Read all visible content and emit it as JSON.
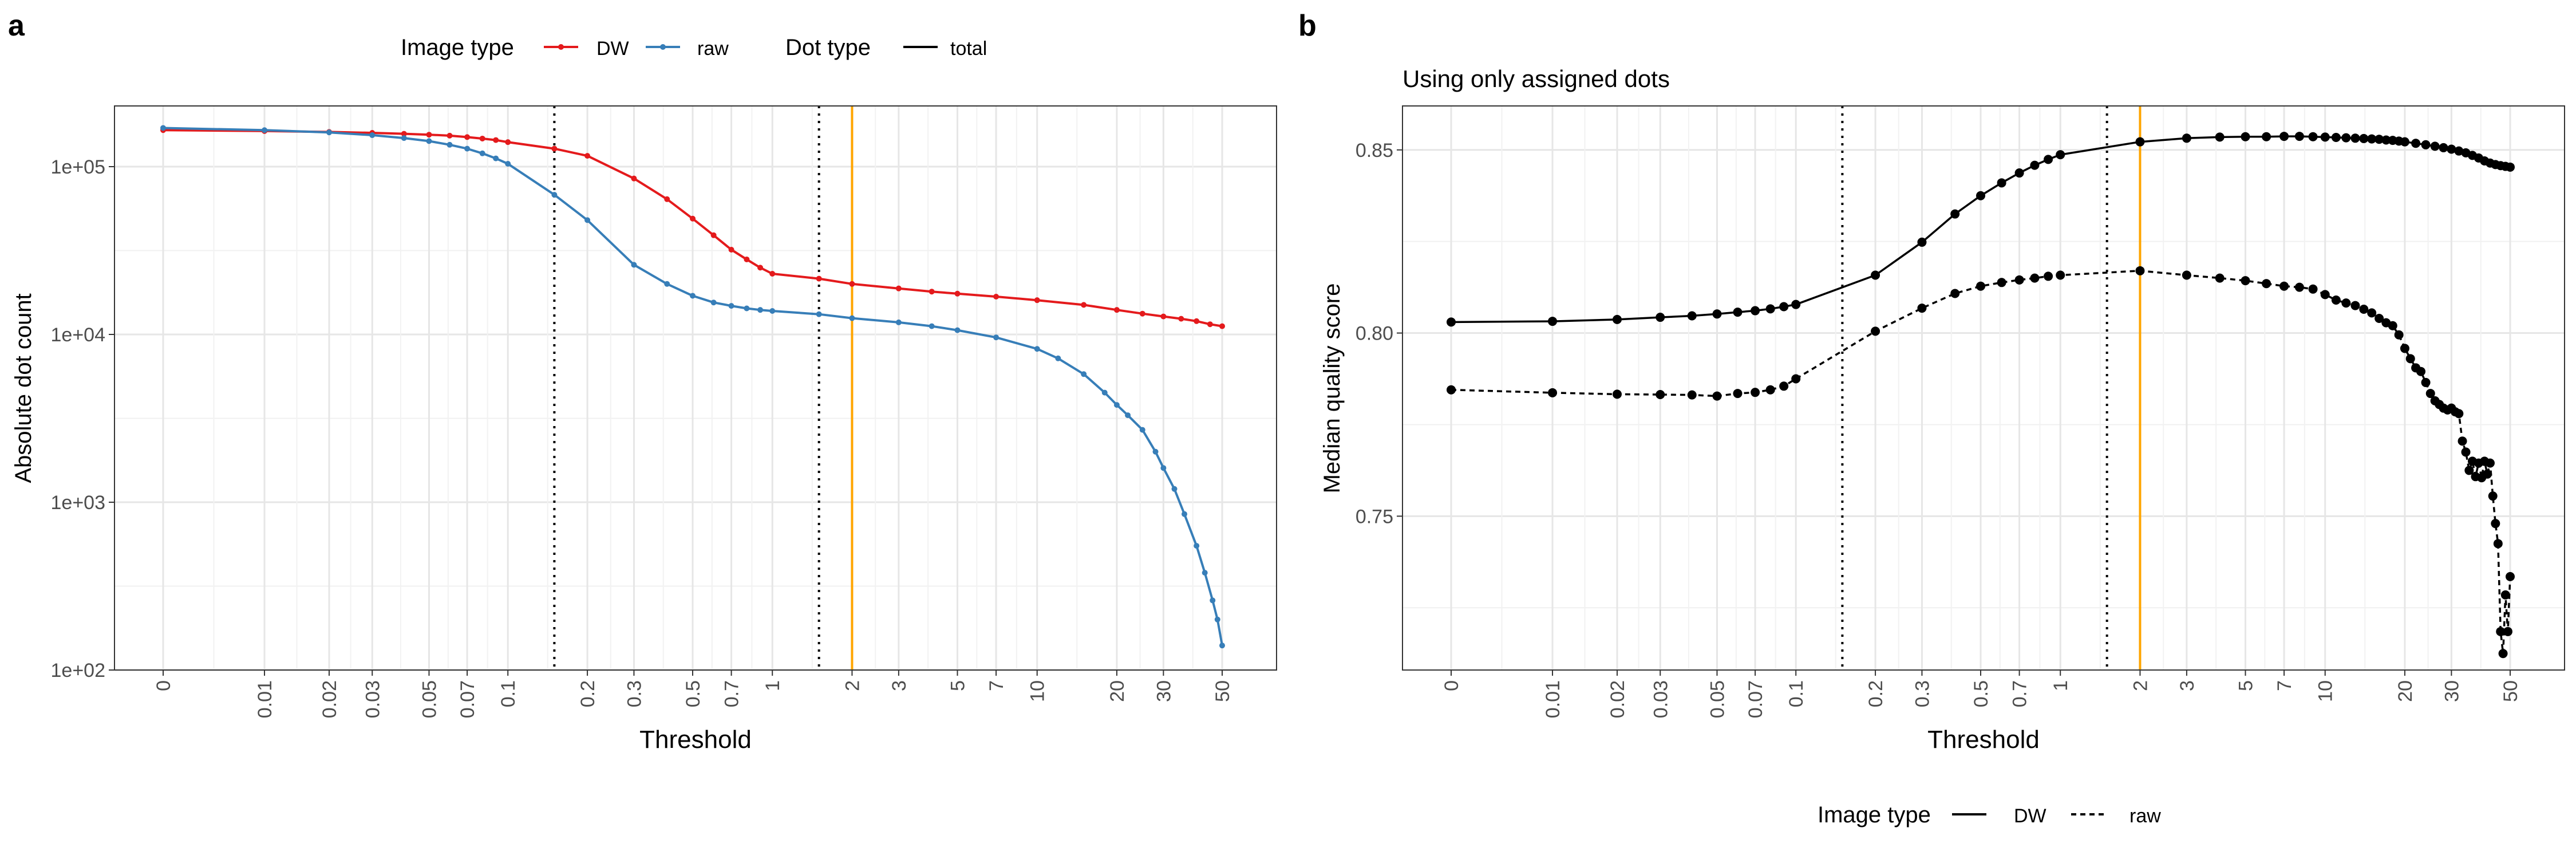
{
  "panels": [
    {
      "tag": "a",
      "title": "",
      "type": "line",
      "xlabel": "Threshold",
      "ylabel": "Absolute dot count",
      "x_ticks": [
        "0",
        "0.01",
        "0.02",
        "0.03",
        "0.05",
        "0.07",
        "0.1",
        "0.2",
        "0.3",
        "0.5",
        "0.7",
        "1",
        "2",
        "3",
        "5",
        "7",
        "10",
        "20",
        "30",
        "50"
      ],
      "y_scale": "log10",
      "y_ticks": [
        "1e+02",
        "1e+03",
        "1e+04",
        "1e+05"
      ],
      "vlines": [
        {
          "x": 0.15,
          "style": "dotted",
          "color": "#000000"
        },
        {
          "x": 1.5,
          "style": "dotted",
          "color": "#000000"
        },
        {
          "x": 2,
          "style": "solid",
          "color": "#FFA500"
        }
      ],
      "chart_data": {
        "type": "line",
        "series": [
          {
            "name": "DW",
            "color": "#E41A1C",
            "points": [
              [
                0,
                165000
              ],
              [
                0.01,
                163000
              ],
              [
                0.02,
                161000
              ],
              [
                0.03,
                159000
              ],
              [
                0.04,
                157000
              ],
              [
                0.05,
                155000
              ],
              [
                0.06,
                153000
              ],
              [
                0.07,
                150000
              ],
              [
                0.08,
                147000
              ],
              [
                0.09,
                144000
              ],
              [
                0.1,
                140000
              ],
              [
                0.15,
                128000
              ],
              [
                0.2,
                116000
              ],
              [
                0.3,
                85000
              ],
              [
                0.4,
                64000
              ],
              [
                0.5,
                49000
              ],
              [
                0.6,
                39000
              ],
              [
                0.7,
                32000
              ],
              [
                0.8,
                28000
              ],
              [
                0.9,
                25000
              ],
              [
                1,
                23000
              ],
              [
                1.5,
                21500
              ],
              [
                2,
                20000
              ],
              [
                3,
                18800
              ],
              [
                4,
                18000
              ],
              [
                5,
                17500
              ],
              [
                7,
                16800
              ],
              [
                10,
                16000
              ],
              [
                15,
                15000
              ],
              [
                20,
                14000
              ],
              [
                25,
                13300
              ],
              [
                30,
                12800
              ],
              [
                35,
                12400
              ],
              [
                40,
                12000
              ],
              [
                45,
                11500
              ],
              [
                50,
                11200
              ]
            ]
          },
          {
            "name": "raw",
            "color": "#377EB8",
            "points": [
              [
                0,
                170000
              ],
              [
                0.01,
                165000
              ],
              [
                0.02,
                160000
              ],
              [
                0.03,
                154000
              ],
              [
                0.04,
                148000
              ],
              [
                0.05,
                142000
              ],
              [
                0.06,
                135000
              ],
              [
                0.07,
                128000
              ],
              [
                0.08,
                120000
              ],
              [
                0.09,
                112000
              ],
              [
                0.1,
                104000
              ],
              [
                0.15,
                68000
              ],
              [
                0.2,
                48000
              ],
              [
                0.3,
                26000
              ],
              [
                0.4,
                20000
              ],
              [
                0.5,
                17000
              ],
              [
                0.6,
                15500
              ],
              [
                0.7,
                14800
              ],
              [
                0.8,
                14300
              ],
              [
                0.9,
                14000
              ],
              [
                1,
                13800
              ],
              [
                1.5,
                13200
              ],
              [
                2,
                12500
              ],
              [
                3,
                11800
              ],
              [
                4,
                11200
              ],
              [
                5,
                10600
              ],
              [
                7,
                9600
              ],
              [
                10,
                8200
              ],
              [
                12,
                7200
              ],
              [
                15,
                5800
              ],
              [
                18,
                4500
              ],
              [
                20,
                3800
              ],
              [
                22,
                3300
              ],
              [
                25,
                2700
              ],
              [
                28,
                2000
              ],
              [
                30,
                1600
              ],
              [
                33,
                1200
              ],
              [
                36,
                850
              ],
              [
                40,
                550
              ],
              [
                43,
                380
              ],
              [
                46,
                260
              ],
              [
                48,
                200
              ],
              [
                50,
                140
              ]
            ]
          }
        ]
      }
    },
    {
      "tag": "b",
      "title": "Using only assigned dots",
      "type": "line",
      "xlabel": "Threshold",
      "ylabel": "Median quality score",
      "x_ticks": [
        "0",
        "0.01",
        "0.02",
        "0.03",
        "0.05",
        "0.07",
        "0.1",
        "0.2",
        "0.3",
        "0.5",
        "0.7",
        "1",
        "2",
        "3",
        "5",
        "7",
        "10",
        "20",
        "30",
        "50"
      ],
      "y_scale": "linear",
      "ylim": [
        0.708,
        0.862
      ],
      "y_ticks": [
        "0.75",
        "0.80",
        "0.85"
      ],
      "vlines": [
        {
          "x": 0.15,
          "style": "dotted",
          "color": "#000000"
        },
        {
          "x": 1.5,
          "style": "dotted",
          "color": "#000000"
        },
        {
          "x": 2,
          "style": "solid",
          "color": "#FFA500"
        }
      ],
      "chart_data": {
        "type": "line",
        "series": [
          {
            "name": "DW",
            "line": "solid",
            "color": "#000000",
            "points": [
              [
                0,
                0.803
              ],
              [
                0.01,
                0.8032
              ],
              [
                0.02,
                0.8037
              ],
              [
                0.03,
                0.8043
              ],
              [
                0.04,
                0.8047
              ],
              [
                0.05,
                0.8052
              ],
              [
                0.06,
                0.8057
              ],
              [
                0.07,
                0.8061
              ],
              [
                0.08,
                0.8066
              ],
              [
                0.09,
                0.8072
              ],
              [
                0.1,
                0.8078
              ],
              [
                0.2,
                0.8158
              ],
              [
                0.3,
                0.8248
              ],
              [
                0.4,
                0.8325
              ],
              [
                0.5,
                0.8375
              ],
              [
                0.6,
                0.841
              ],
              [
                0.7,
                0.8437
              ],
              [
                0.8,
                0.8458
              ],
              [
                0.9,
                0.8474
              ],
              [
                1,
                0.8487
              ],
              [
                2,
                0.8522
              ],
              [
                3,
                0.8532
              ],
              [
                4,
                0.8535
              ],
              [
                5,
                0.8536
              ],
              [
                6,
                0.8536
              ],
              [
                7,
                0.8537
              ],
              [
                8,
                0.8537
              ],
              [
                9,
                0.8536
              ],
              [
                10,
                0.8535
              ],
              [
                11,
                0.8534
              ],
              [
                12,
                0.8533
              ],
              [
                13,
                0.8532
              ],
              [
                14,
                0.8531
              ],
              [
                15,
                0.853
              ],
              [
                16,
                0.8529
              ],
              [
                17,
                0.8527
              ],
              [
                18,
                0.8526
              ],
              [
                19,
                0.8524
              ],
              [
                20,
                0.8522
              ],
              [
                22,
                0.8518
              ],
              [
                24,
                0.8514
              ],
              [
                26,
                0.851
              ],
              [
                28,
                0.8506
              ],
              [
                30,
                0.8502
              ],
              [
                32,
                0.8497
              ],
              [
                34,
                0.8492
              ],
              [
                36,
                0.8485
              ],
              [
                38,
                0.8478
              ],
              [
                40,
                0.847
              ],
              [
                42,
                0.8464
              ],
              [
                44,
                0.846
              ],
              [
                46,
                0.8457
              ],
              [
                48,
                0.8455
              ],
              [
                50,
                0.8453
              ]
            ]
          },
          {
            "name": "raw",
            "line": "dashed",
            "color": "#000000",
            "points": [
              [
                0,
                0.7845
              ],
              [
                0.01,
                0.7837
              ],
              [
                0.02,
                0.7833
              ],
              [
                0.03,
                0.7832
              ],
              [
                0.04,
                0.7831
              ],
              [
                0.05,
                0.7828
              ],
              [
                0.06,
                0.7835
              ],
              [
                0.07,
                0.7838
              ],
              [
                0.08,
                0.7845
              ],
              [
                0.09,
                0.7855
              ],
              [
                0.1,
                0.7875
              ],
              [
                0.2,
                0.8005
              ],
              [
                0.3,
                0.8068
              ],
              [
                0.4,
                0.8108
              ],
              [
                0.5,
                0.8128
              ],
              [
                0.6,
                0.8138
              ],
              [
                0.7,
                0.8145
              ],
              [
                0.8,
                0.815
              ],
              [
                0.9,
                0.8155
              ],
              [
                1,
                0.8158
              ],
              [
                2,
                0.817
              ],
              [
                3,
                0.8158
              ],
              [
                4,
                0.815
              ],
              [
                5,
                0.8143
              ],
              [
                6,
                0.8135
              ],
              [
                7,
                0.8128
              ],
              [
                8,
                0.8125
              ],
              [
                9,
                0.812
              ],
              [
                10,
                0.8105
              ],
              [
                11,
                0.809
              ],
              [
                12,
                0.8082
              ],
              [
                13,
                0.8075
              ],
              [
                14,
                0.8065
              ],
              [
                15,
                0.8055
              ],
              [
                16,
                0.804
              ],
              [
                17,
                0.8028
              ],
              [
                18,
                0.802
              ],
              [
                19,
                0.7995
              ],
              [
                20,
                0.7958
              ],
              [
                21,
                0.793
              ],
              [
                22,
                0.7905
              ],
              [
                23,
                0.7895
              ],
              [
                24,
                0.7865
              ],
              [
                25,
                0.7835
              ],
              [
                26,
                0.7815
              ],
              [
                27,
                0.7805
              ],
              [
                28,
                0.7795
              ],
              [
                29,
                0.779
              ],
              [
                30,
                0.7795
              ],
              [
                31,
                0.7785
              ],
              [
                32,
                0.778
              ],
              [
                33,
                0.7705
              ],
              [
                34,
                0.7675
              ],
              [
                35,
                0.7625
              ],
              [
                36,
                0.765
              ],
              [
                37,
                0.7608
              ],
              [
                38,
                0.7645
              ],
              [
                39,
                0.7605
              ],
              [
                40,
                0.765
              ],
              [
                41,
                0.7615
              ],
              [
                42,
                0.7645
              ],
              [
                43,
                0.7555
              ],
              [
                44,
                0.748
              ],
              [
                45,
                0.7425
              ],
              [
                46,
                0.7185
              ],
              [
                47,
                0.7125
              ],
              [
                48,
                0.7285
              ],
              [
                49,
                0.7185
              ],
              [
                50,
                0.7335
              ]
            ]
          }
        ]
      }
    }
  ],
  "legend_a": {
    "image_type_title": "Image type",
    "image_type_items": [
      {
        "label": "DW",
        "color": "#E41A1C"
      },
      {
        "label": "raw",
        "color": "#377EB8"
      }
    ],
    "dot_type_title": "Dot type",
    "dot_type_items": [
      {
        "label": "total",
        "color": "#000000"
      }
    ]
  },
  "legend_b": {
    "title": "Image type",
    "items": [
      {
        "label": "DW",
        "line": "solid"
      },
      {
        "label": "raw",
        "line": "dashed"
      }
    ]
  }
}
